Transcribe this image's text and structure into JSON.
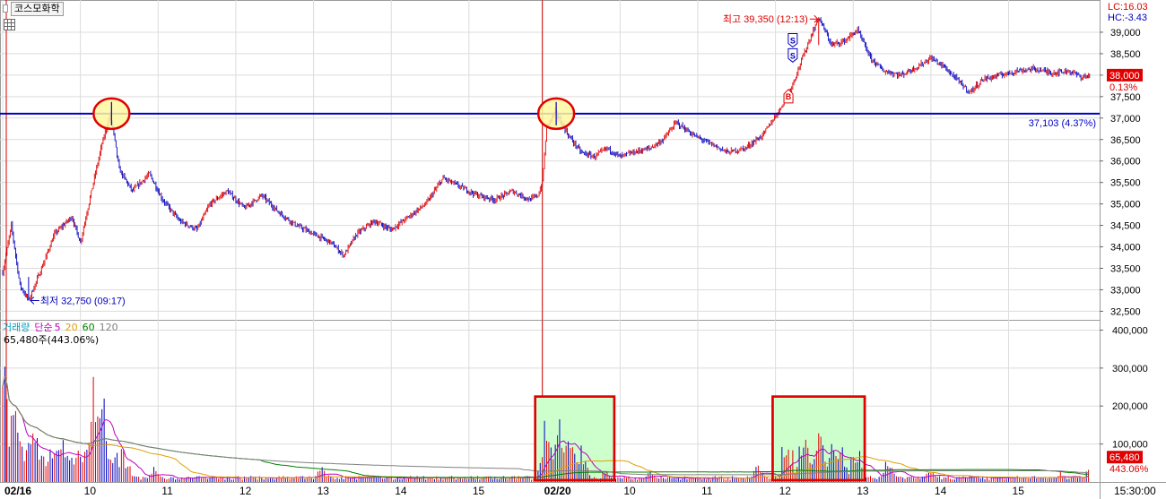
{
  "stock_name": "코스모화학",
  "lc_label": "LC:16.03",
  "hc_label": "HC:-3.43",
  "current_price": "38,000",
  "current_change": "0.13%",
  "hline_label": "37,103 (4.37%)",
  "high_annotation": "최고 39,350 (12:13)",
  "low_annotation": "최저 32,750 (09:17)",
  "volume_legend": [
    {
      "label": "거래량",
      "color": "#00a0c0"
    },
    {
      "label": "단순",
      "color": "#c000c0"
    },
    {
      "label": "5",
      "color": "#c000c0"
    },
    {
      "label": "20",
      "color": "#e0a000"
    },
    {
      "label": "60",
      "color": "#008000"
    },
    {
      "label": "120",
      "color": "#808080"
    }
  ],
  "volume_value": "65,480주(443.06%)",
  "volume_current": "65,480",
  "volume_pct": "443.06%",
  "signals": [
    {
      "label": "S",
      "type": "sell"
    },
    {
      "label": "S",
      "type": "sell"
    },
    {
      "label": "B",
      "type": "buy"
    }
  ],
  "colors": {
    "up": "#e00000",
    "down": "#0000c0",
    "hline": "#0000c8",
    "grid": "#dcdcdc",
    "highlight_fill": "#fff8a0",
    "highlight_stroke": "#e00000",
    "volume_box_fill": "#ccffcc",
    "volume_box_stroke": "#e00000",
    "price_tag": "#e00000"
  },
  "chart_data": {
    "type": "candlestick",
    "price_axis": {
      "ticks": [
        "39,000",
        "38,500",
        "38,000",
        "37,500",
        "37,000",
        "36,500",
        "36,000",
        "35,500",
        "35,000",
        "34,500",
        "34,000",
        "33,500",
        "33,000",
        "32,500"
      ],
      "min": 32300,
      "max": 39500
    },
    "volume_axis": {
      "ticks": [
        "400,000",
        "300,000",
        "200,000",
        "100,000"
      ],
      "min": 0,
      "max": 420000
    },
    "x_labels": [
      "02/16",
      "10",
      "11",
      "12",
      "13",
      "14",
      "15",
      "02/20",
      "10",
      "11",
      "12",
      "13",
      "14",
      "15",
      "15:30:00"
    ],
    "reference_line": 37103,
    "high": 39350,
    "low": 32750,
    "close": 38000,
    "price_path": [
      [
        0,
        33400
      ],
      [
        2,
        34500
      ],
      [
        4,
        33100
      ],
      [
        6,
        32750
      ],
      [
        9,
        33500
      ],
      [
        12,
        34300
      ],
      [
        16,
        34700
      ],
      [
        18,
        34100
      ],
      [
        21,
        35500
      ],
      [
        23,
        36400
      ],
      [
        25,
        37100
      ],
      [
        27,
        35800
      ],
      [
        30,
        35300
      ],
      [
        34,
        35700
      ],
      [
        37,
        35100
      ],
      [
        41,
        34600
      ],
      [
        45,
        34400
      ],
      [
        48,
        35000
      ],
      [
        52,
        35300
      ],
      [
        56,
        34900
      ],
      [
        60,
        35200
      ],
      [
        64,
        34800
      ],
      [
        68,
        34500
      ],
      [
        72,
        34300
      ],
      [
        76,
        34100
      ],
      [
        79,
        33800
      ],
      [
        82,
        34300
      ],
      [
        86,
        34600
      ],
      [
        90,
        34400
      ],
      [
        94,
        34700
      ],
      [
        98,
        35000
      ],
      [
        102,
        35600
      ],
      [
        106,
        35400
      ],
      [
        110,
        35200
      ],
      [
        114,
        35100
      ],
      [
        118,
        35300
      ],
      [
        122,
        35100
      ],
      [
        124,
        35200
      ],
      [
        125,
        35500
      ],
      [
        126,
        36800
      ],
      [
        128,
        37150
      ],
      [
        131,
        36600
      ],
      [
        134,
        36200
      ],
      [
        137,
        36100
      ],
      [
        140,
        36300
      ],
      [
        143,
        36100
      ],
      [
        146,
        36200
      ],
      [
        150,
        36300
      ],
      [
        153,
        36500
      ],
      [
        156,
        36900
      ],
      [
        160,
        36600
      ],
      [
        164,
        36400
      ],
      [
        168,
        36200
      ],
      [
        172,
        36300
      ],
      [
        176,
        36600
      ],
      [
        180,
        37200
      ],
      [
        183,
        37800
      ],
      [
        186,
        38600
      ],
      [
        189,
        39350
      ],
      [
        192,
        38700
      ],
      [
        195,
        38800
      ],
      [
        198,
        39050
      ],
      [
        201,
        38400
      ],
      [
        204,
        38100
      ],
      [
        208,
        38000
      ],
      [
        212,
        38200
      ],
      [
        215,
        38400
      ],
      [
        218,
        38200
      ],
      [
        221,
        37900
      ],
      [
        224,
        37600
      ],
      [
        227,
        37900
      ],
      [
        231,
        38000
      ],
      [
        235,
        38100
      ],
      [
        239,
        38150
      ],
      [
        243,
        38050
      ],
      [
        247,
        38100
      ],
      [
        250,
        37950
      ],
      [
        252,
        38000
      ]
    ],
    "volume_days": [
      {
        "name": "02/16",
        "start": 0,
        "peaks": [
          [
            0,
            400000
          ],
          [
            3,
            300000
          ],
          [
            7,
            240000
          ],
          [
            14,
            120000
          ],
          [
            21,
            300000
          ],
          [
            23,
            310000
          ],
          [
            26,
            90000
          ],
          [
            35,
            40000
          ],
          [
            74,
            50000
          ]
        ]
      },
      {
        "name": "02/20",
        "start": 125,
        "peaks": [
          [
            126,
            210000
          ],
          [
            129,
            200000
          ],
          [
            131,
            160000
          ],
          [
            134,
            110000
          ],
          [
            140,
            40000
          ],
          [
            150,
            30000
          ],
          [
            175,
            50000
          ],
          [
            182,
            90000
          ],
          [
            186,
            140000
          ],
          [
            189,
            170000
          ],
          [
            194,
            120000
          ],
          [
            198,
            90000
          ],
          [
            205,
            70000
          ],
          [
            215,
            40000
          ],
          [
            245,
            30000
          ],
          [
            252,
            65480
          ]
        ]
      }
    ]
  }
}
